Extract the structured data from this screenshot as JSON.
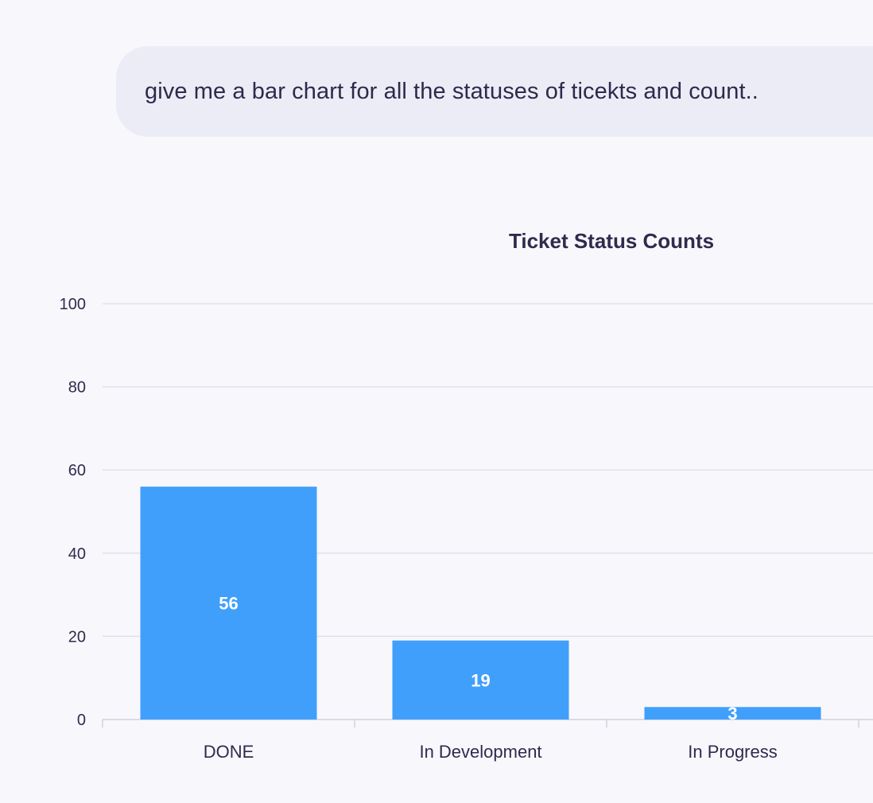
{
  "message": {
    "text": "give me a bar chart for all the statuses of ticekts and count.."
  },
  "chart_data": {
    "type": "bar",
    "title": "Ticket Status Counts",
    "categories": [
      "DONE",
      "In Development",
      "In Progress"
    ],
    "values": [
      56,
      19,
      3
    ],
    "data_labels": [
      "56",
      "19",
      "3"
    ],
    "xlabel": "",
    "ylabel": "",
    "ylim": [
      0,
      100
    ],
    "yticks": [
      0,
      20,
      40,
      60,
      80,
      100
    ],
    "grid": true,
    "bar_color": "#409ffb",
    "grid_color": "#e2e1ea",
    "axis_color": "#d3d2dc",
    "text_color": "#2f2b4d"
  }
}
